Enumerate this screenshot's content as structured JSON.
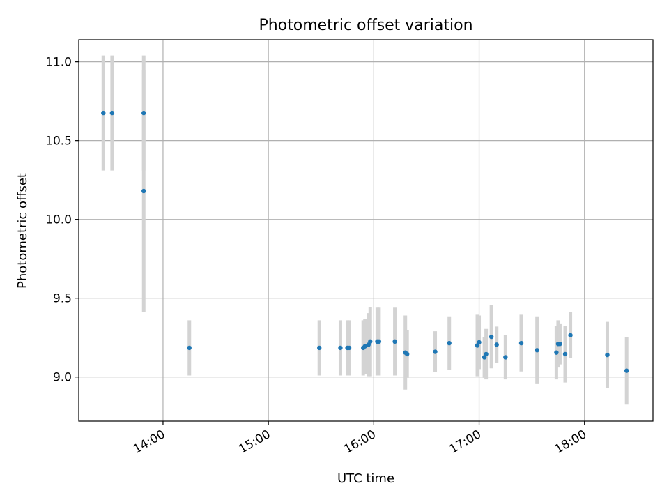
{
  "chart_data": {
    "type": "scatter",
    "title": "Photometric offset variation",
    "xlabel": "UTC time",
    "ylabel": "Photometric offset",
    "x_ticks": [
      "14:00",
      "15:00",
      "16:00",
      "17:00",
      "18:00"
    ],
    "y_ticks": [
      "9.0",
      "9.5",
      "10.0",
      "10.5",
      "11.0"
    ],
    "xlim": [
      "13:12",
      "18:39"
    ],
    "ylim": [
      8.72,
      11.14
    ],
    "grid": true,
    "colors": {
      "point": "#1f77b4",
      "errorbar": "#d3d3d3",
      "grid": "#b0b0b0"
    },
    "points": [
      {
        "x": "13:26",
        "y": 10.675,
        "err": 0.365
      },
      {
        "x": "13:31",
        "y": 10.675,
        "err": 0.365
      },
      {
        "x": "13:49",
        "y": 10.675,
        "err": 0.365
      },
      {
        "x": "13:49",
        "y": 10.18,
        "err": 0.77
      },
      {
        "x": "14:15",
        "y": 9.185,
        "err": 0.175
      },
      {
        "x": "15:29",
        "y": 9.185,
        "err": 0.175
      },
      {
        "x": "15:41",
        "y": 9.185,
        "err": 0.175
      },
      {
        "x": "15:45",
        "y": 9.185,
        "err": 0.175
      },
      {
        "x": "15:46",
        "y": 9.185,
        "err": 0.175
      },
      {
        "x": "15:54",
        "y": 9.185,
        "err": 0.175
      },
      {
        "x": "15:55",
        "y": 9.195,
        "err": 0.175
      },
      {
        "x": "15:57",
        "y": 9.205,
        "err": 0.2
      },
      {
        "x": "15:58",
        "y": 9.225,
        "err": 0.22
      },
      {
        "x": "16:02",
        "y": 9.225,
        "err": 0.215
      },
      {
        "x": "16:03",
        "y": 9.225,
        "err": 0.215
      },
      {
        "x": "16:12",
        "y": 9.225,
        "err": 0.215
      },
      {
        "x": "16:18",
        "y": 9.155,
        "err": 0.235
      },
      {
        "x": "16:19",
        "y": 9.145,
        "err": 0.15
      },
      {
        "x": "16:35",
        "y": 9.16,
        "err": 0.13
      },
      {
        "x": "16:43",
        "y": 9.215,
        "err": 0.17
      },
      {
        "x": "16:59",
        "y": 9.2,
        "err": 0.195
      },
      {
        "x": "17:00",
        "y": 9.22,
        "err": 0.17
      },
      {
        "x": "17:03",
        "y": 9.125,
        "err": 0.13
      },
      {
        "x": "17:04",
        "y": 9.145,
        "err": 0.16
      },
      {
        "x": "17:07",
        "y": 9.255,
        "err": 0.2
      },
      {
        "x": "17:10",
        "y": 9.205,
        "err": 0.115
      },
      {
        "x": "17:15",
        "y": 9.125,
        "err": 0.14
      },
      {
        "x": "17:24",
        "y": 9.215,
        "err": 0.18
      },
      {
        "x": "17:33",
        "y": 9.17,
        "err": 0.215
      },
      {
        "x": "17:44",
        "y": 9.155,
        "err": 0.17
      },
      {
        "x": "17:45",
        "y": 9.21,
        "err": 0.15
      },
      {
        "x": "17:46",
        "y": 9.21,
        "err": 0.13
      },
      {
        "x": "17:49",
        "y": 9.145,
        "err": 0.18
      },
      {
        "x": "17:52",
        "y": 9.265,
        "err": 0.145
      },
      {
        "x": "18:13",
        "y": 9.14,
        "err": 0.21
      },
      {
        "x": "18:24",
        "y": 9.04,
        "err": 0.215
      }
    ]
  }
}
